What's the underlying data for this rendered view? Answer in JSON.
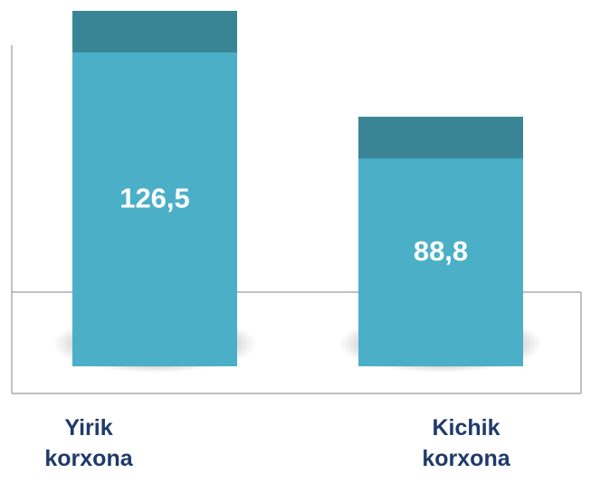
{
  "chart_data": {
    "type": "bar",
    "categories": [
      "Yirik korxona",
      "Kichik korxona"
    ],
    "values": [
      126.5,
      88.8
    ],
    "value_labels": [
      "126,5",
      "88,8"
    ],
    "color": "#4bafc8"
  }
}
